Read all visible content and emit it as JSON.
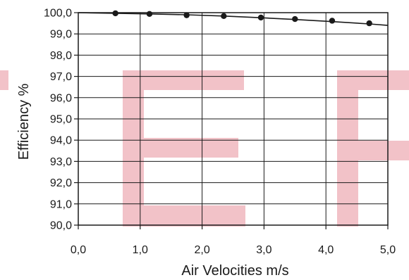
{
  "chart_data": {
    "type": "line",
    "xlabel": "Air Velocities m/s",
    "ylabel": "Efficiency %",
    "xlim": [
      0,
      5
    ],
    "ylim": [
      90,
      100
    ],
    "x_ticks": [
      "0,0",
      "1,0",
      "2,0",
      "3,0",
      "4,0",
      "5,0"
    ],
    "y_ticks": [
      "100,0",
      "99,0",
      "98,0",
      "97,0",
      "96,0",
      "95,0",
      "94,0",
      "93,0",
      "92,0",
      "91,0",
      "90,0"
    ],
    "grid": true,
    "series": [
      {
        "x": [
          0.6,
          1.15,
          1.75,
          2.35,
          2.95,
          3.5,
          4.1,
          4.7
        ],
        "y": [
          99.97,
          99.94,
          99.88,
          99.84,
          99.77,
          99.7,
          99.62,
          99.5
        ],
        "marker": "circle",
        "color": "#1a1a1a"
      }
    ],
    "curve": {
      "x": [
        0,
        0.6,
        1.15,
        1.75,
        2.35,
        2.95,
        3.5,
        4.1,
        4.7,
        5.0
      ],
      "y": [
        100.0,
        99.97,
        99.94,
        99.9,
        99.84,
        99.76,
        99.68,
        99.58,
        99.47,
        99.4
      ]
    },
    "watermark": {
      "text": "EF",
      "color": "#f2c2c8"
    }
  }
}
